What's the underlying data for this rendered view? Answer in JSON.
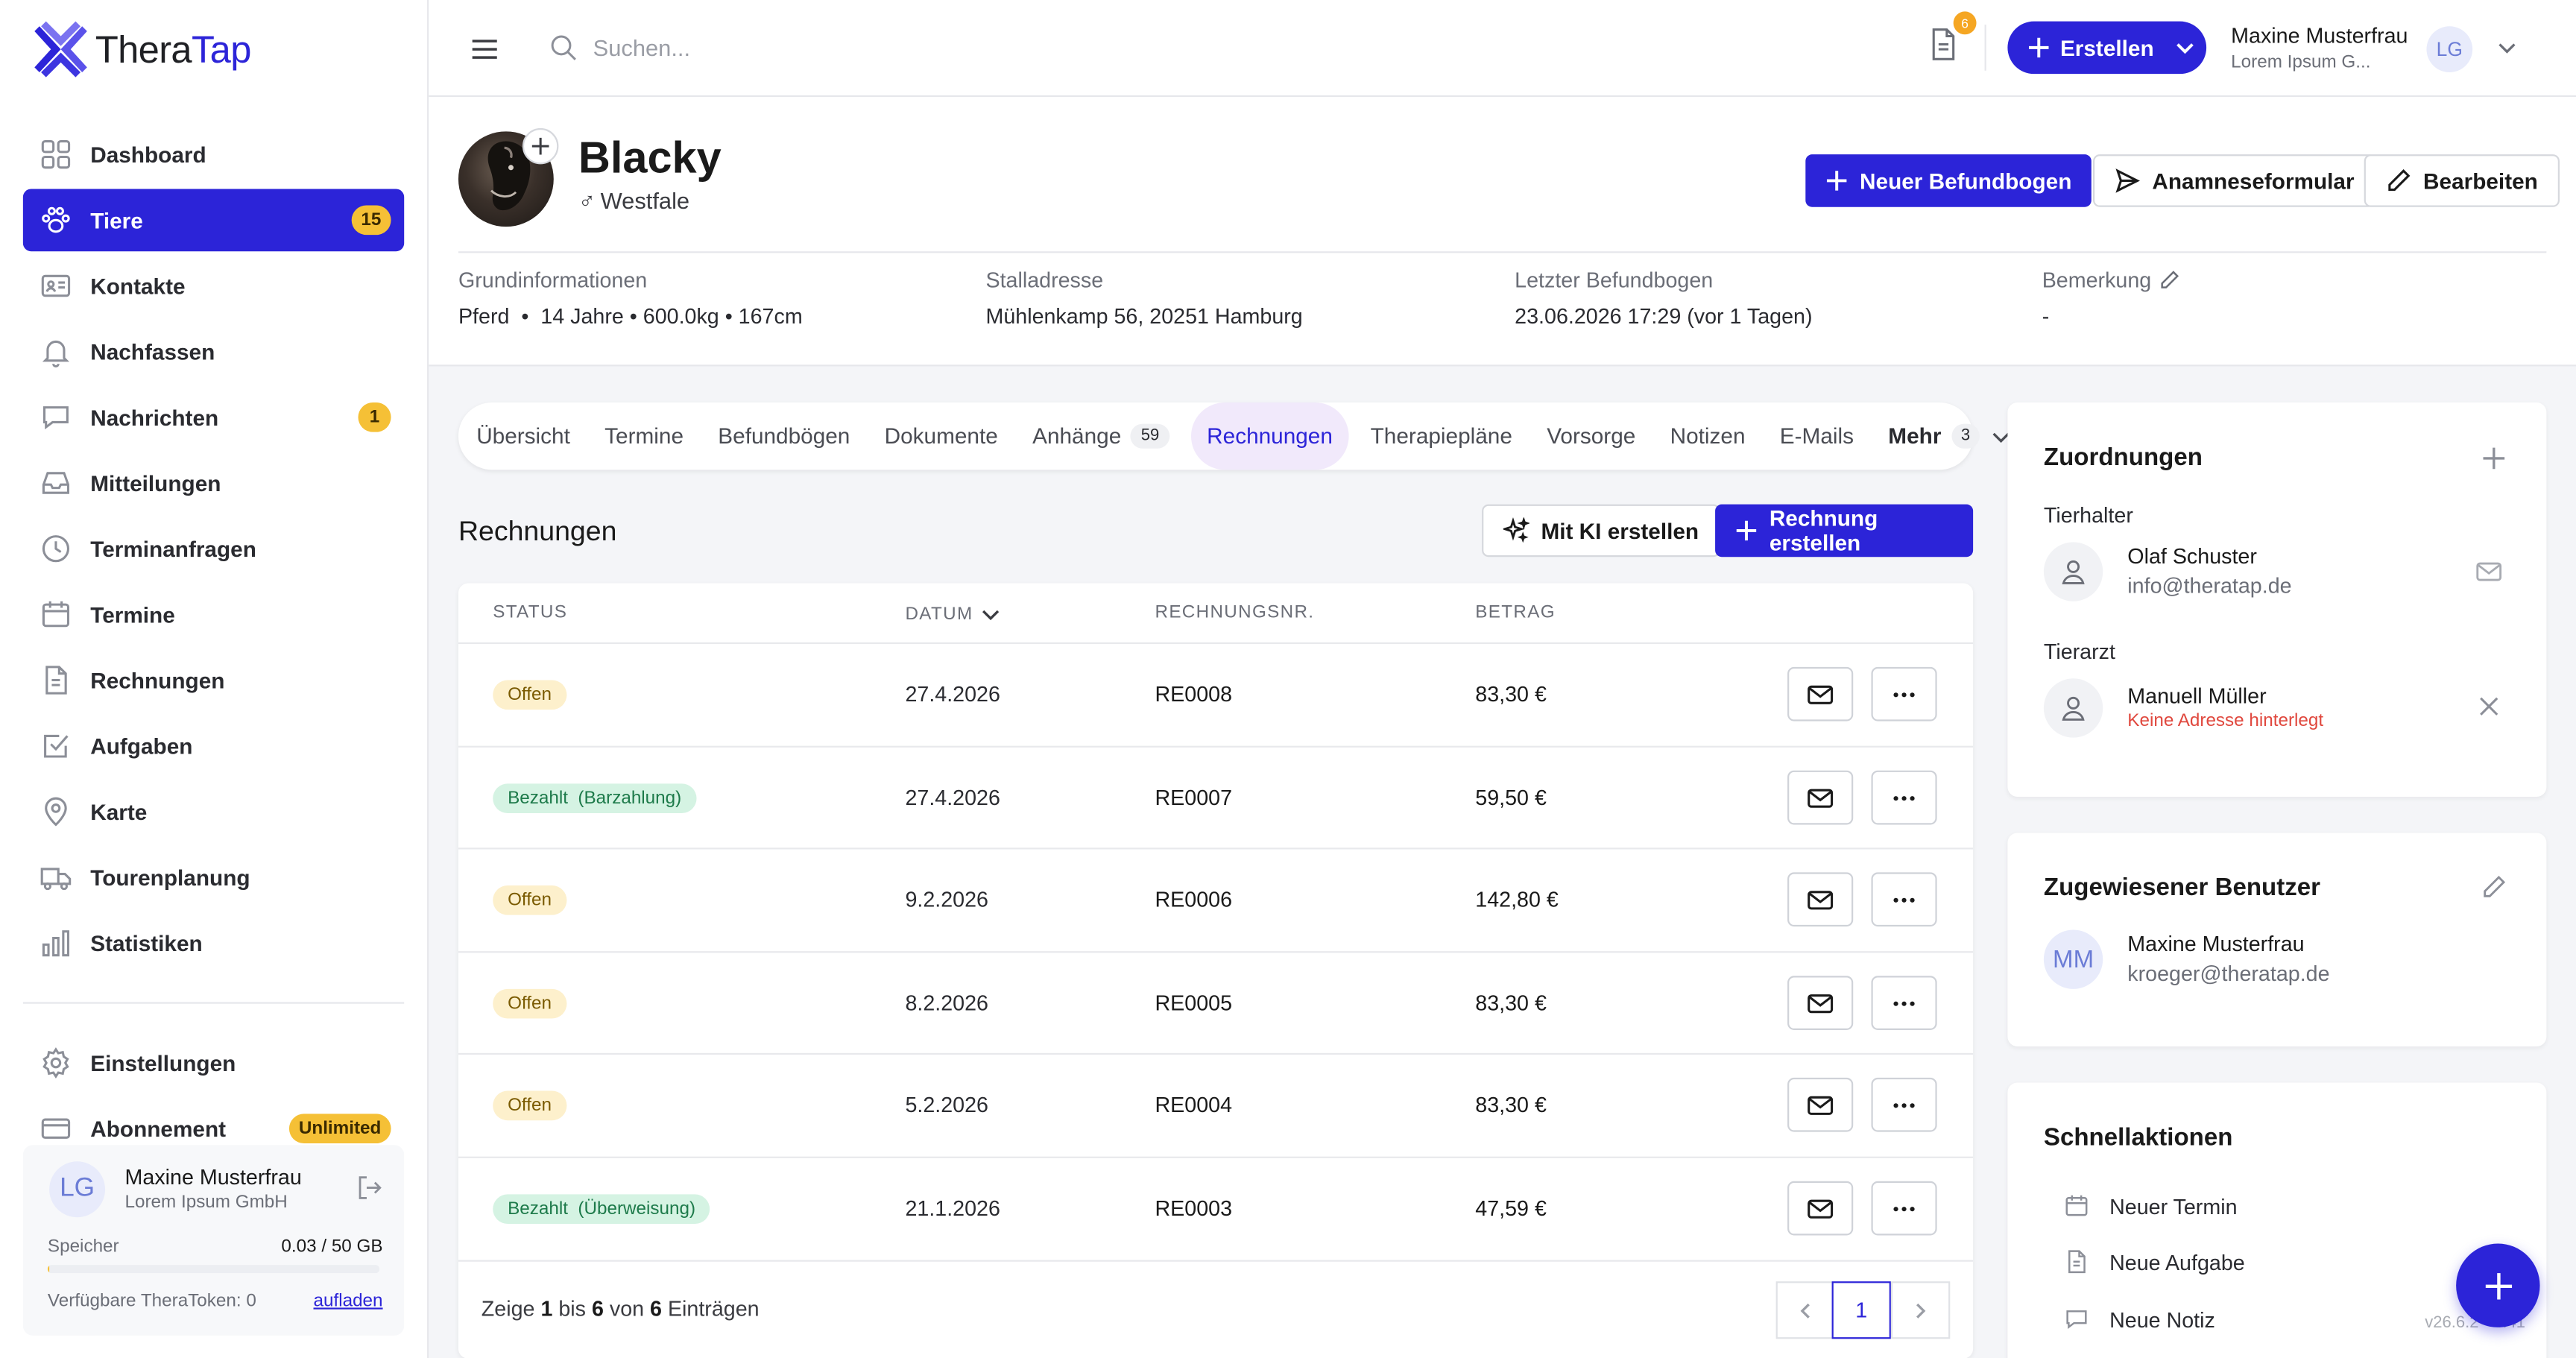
{
  "app": {
    "logo_part1": "Thera",
    "logo_part2": "Tap"
  },
  "sidebar": {
    "items": [
      {
        "label": "Dashboard",
        "icon": "dashboard-icon"
      },
      {
        "label": "Tiere",
        "icon": "paw-icon",
        "badge": "15",
        "active": true
      },
      {
        "label": "Kontakte",
        "icon": "contacts-icon"
      },
      {
        "label": "Nachfassen",
        "icon": "bell-icon"
      },
      {
        "label": "Nachrichten",
        "icon": "chat-icon",
        "badge": "1"
      },
      {
        "label": "Mitteilungen",
        "icon": "inbox-icon"
      },
      {
        "label": "Terminanfragen",
        "icon": "clock-icon"
      },
      {
        "label": "Termine",
        "icon": "calendar-icon"
      },
      {
        "label": "Rechnungen",
        "icon": "invoice-icon"
      },
      {
        "label": "Aufgaben",
        "icon": "checkbox-icon"
      },
      {
        "label": "Karte",
        "icon": "map-pin-icon"
      },
      {
        "label": "Tourenplanung",
        "icon": "truck-icon"
      },
      {
        "label": "Statistiken",
        "icon": "bar-chart-icon"
      }
    ],
    "bottom_items": [
      {
        "label": "Einstellungen",
        "icon": "gear-icon"
      },
      {
        "label": "Abonnement",
        "icon": "card-icon",
        "badge": "Unlimited"
      }
    ],
    "user": {
      "initials": "LG",
      "name": "Maxine Musterfrau",
      "company": "Lorem Ipsum GmbH",
      "storage_label": "Speicher",
      "storage_value": "0.03 / 50 GB",
      "storage_fraction": 0.0006,
      "tokens_label": "Verfügbare TheraToken: 0",
      "tokens_action": "aufladen"
    }
  },
  "topbar": {
    "search_placeholder": "Suchen...",
    "doc_badge": "6",
    "create_label": "Erstellen",
    "user_name": "Maxine Musterfrau",
    "user_company": "Lorem Ipsum G...",
    "user_initials": "LG"
  },
  "animal": {
    "name": "Blacky",
    "breed": "Westfale",
    "sex_symbol": "♂",
    "actions": {
      "new_report": "Neuer Befundbogen",
      "anamnesis": "Anamneseformular",
      "edit": "Bearbeiten"
    },
    "info": {
      "basic_label": "Grundinformationen",
      "basic_value": "Pferd  •  14 Jahre • 600.0kg • 167cm",
      "stable_label": "Stalladresse",
      "stable_value": "Mühlenkamp 56, 20251 Hamburg",
      "last_report_label": "Letzter Befundbogen",
      "last_report_value": "23.06.2026 17:29 (vor 1 Tagen)",
      "remark_label": "Bemerkung",
      "remark_value": "-"
    }
  },
  "tabs": [
    {
      "label": "Übersicht"
    },
    {
      "label": "Termine"
    },
    {
      "label": "Befundbögen"
    },
    {
      "label": "Dokumente"
    },
    {
      "label": "Anhänge",
      "count": "59"
    },
    {
      "label": "Rechnungen",
      "active": true
    },
    {
      "label": "Therapiepläne"
    },
    {
      "label": "Vorsorge"
    },
    {
      "label": "Notizen"
    },
    {
      "label": "E-Mails"
    },
    {
      "label": "Mehr",
      "count": "3"
    }
  ],
  "invoices": {
    "title": "Rechnungen",
    "ai_button": "Mit KI erstellen",
    "create_button": "Rechnung erstellen",
    "columns": {
      "status": "STATUS",
      "date": "DATUM",
      "number": "RECHNUNGSNR.",
      "amount": "BETRAG"
    },
    "rows": [
      {
        "status": "Offen",
        "status_type": "open",
        "date": "27.4.2026",
        "number": "RE0008",
        "amount": "83,30 €"
      },
      {
        "status": "Bezahlt  (Barzahlung)",
        "status_type": "paid",
        "date": "27.4.2026",
        "number": "RE0007",
        "amount": "59,50 €"
      },
      {
        "status": "Offen",
        "status_type": "open",
        "date": "9.2.2026",
        "number": "RE0006",
        "amount": "142,80 €"
      },
      {
        "status": "Offen",
        "status_type": "open",
        "date": "8.2.2026",
        "number": "RE0005",
        "amount": "83,30 €"
      },
      {
        "status": "Offen",
        "status_type": "open",
        "date": "5.2.2026",
        "number": "RE0004",
        "amount": "83,30 €"
      },
      {
        "status": "Bezahlt  (Überweisung)",
        "status_type": "paid",
        "date": "21.1.2026",
        "number": "RE0003",
        "amount": "47,59 €"
      }
    ],
    "footer": {
      "pre": "Zeige ",
      "from": "1",
      "mid1": " bis ",
      "to": "6",
      "mid2": " von ",
      "total": "6",
      "post": " Einträgen"
    },
    "current_page": "1"
  },
  "assignments": {
    "title": "Zuordnungen",
    "owner_label": "Tierhalter",
    "owner_name": "Olaf Schuster",
    "owner_email": "info@theratap.de",
    "vet_label": "Tierarzt",
    "vet_name": "Manuell Müller",
    "vet_note": "Keine Adresse hinterlegt"
  },
  "assigned_user": {
    "title": "Zugewiesener Benutzer",
    "initials": "MM",
    "name": "Maxine Musterfrau",
    "email": "kroeger@theratap.de"
  },
  "quick_actions": {
    "title": "Schnellaktionen",
    "items": [
      {
        "label": "Neuer Termin",
        "icon": "calendar-icon"
      },
      {
        "label": "Neue Aufgabe",
        "icon": "document-icon"
      },
      {
        "label": "Neue Notiz",
        "icon": "comment-icon"
      }
    ]
  },
  "version": "v26.6.2 · 4.41",
  "colors": {
    "primary": "#2c24d8",
    "badge_yellow": "#f5c036",
    "open_bg": "#fdf0cc",
    "paid_bg": "#d5f3e3",
    "error": "#e0483e"
  }
}
